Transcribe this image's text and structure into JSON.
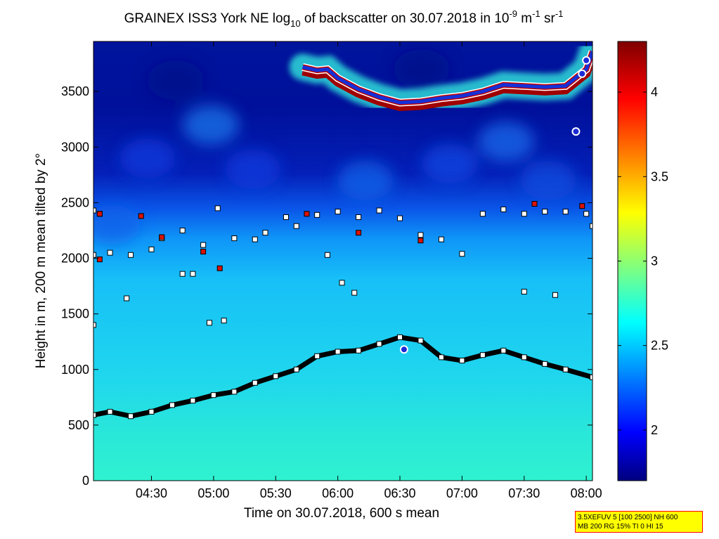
{
  "chart_data": {
    "type": "heatmap",
    "title_parts": {
      "prefix": "GRAINEX ISS3 York NE log",
      "log_subscript": "10",
      "middle": " of backscatter on 30.07.2018 in 10",
      "exp1": "-9",
      "unit_m": " m",
      "exp2": "-1",
      "unit_sr": " sr",
      "exp3": "-1"
    },
    "xlabel": "Time on 30.07.2018, 600 s mean",
    "ylabel": "Height in m, 200 m mean tilted by 2°",
    "xlim": [
      "04:02",
      "08:03"
    ],
    "ylim": [
      0,
      3950
    ],
    "x_ticks": [
      "04:30",
      "05:00",
      "05:30",
      "06:00",
      "06:30",
      "07:00",
      "07:30",
      "08:00"
    ],
    "y_ticks": [
      "0",
      "500",
      "1000",
      "1500",
      "2000",
      "2500",
      "3000",
      "3500"
    ],
    "colorbar": {
      "range": [
        1.7,
        4.3
      ],
      "ticks": [
        "2",
        "2.5",
        "3",
        "3.5",
        "4"
      ],
      "colormap": "jet"
    },
    "background_field": {
      "description": "log10 backscatter: ~2.7 near surface, ~2.55 in mixed layer up to ~2000 m, ~2.2 between 2000-2500 m, ~1.8-2.1 aloft, cloud layer ~4.3 near 3400-3700 m after 05:45"
    },
    "series": [
      {
        "marker": "black-square",
        "points": [
          [
            "04:02",
            590
          ],
          [
            "04:10",
            620
          ],
          [
            "04:20",
            580
          ],
          [
            "04:30",
            620
          ],
          [
            "04:40",
            680
          ],
          [
            "04:50",
            720
          ],
          [
            "05:00",
            770
          ],
          [
            "05:10",
            800
          ],
          [
            "05:20",
            880
          ],
          [
            "05:30",
            940
          ],
          [
            "05:40",
            1000
          ],
          [
            "05:50",
            1120
          ],
          [
            "06:00",
            1160
          ],
          [
            "06:10",
            1170
          ],
          [
            "06:20",
            1230
          ],
          [
            "06:30",
            1290
          ],
          [
            "06:40",
            1260
          ],
          [
            "06:50",
            1110
          ],
          [
            "07:00",
            1080
          ],
          [
            "07:10",
            1130
          ],
          [
            "07:20",
            1170
          ],
          [
            "07:30",
            1110
          ],
          [
            "07:40",
            1050
          ],
          [
            "07:50",
            1000
          ],
          [
            "08:03",
            930
          ]
        ]
      },
      {
        "marker": "cloud-layer",
        "points": [
          [
            "05:43",
            3720
          ],
          [
            "05:50",
            3690
          ],
          [
            "05:55",
            3700
          ],
          [
            "06:00",
            3620
          ],
          [
            "06:10",
            3520
          ],
          [
            "06:20",
            3450
          ],
          [
            "06:30",
            3400
          ],
          [
            "06:40",
            3410
          ],
          [
            "06:50",
            3440
          ],
          [
            "07:00",
            3460
          ],
          [
            "07:10",
            3500
          ],
          [
            "07:20",
            3560
          ],
          [
            "07:30",
            3550
          ],
          [
            "07:40",
            3540
          ],
          [
            "07:50",
            3550
          ],
          [
            "08:00",
            3700
          ],
          [
            "08:03",
            3860
          ]
        ]
      },
      {
        "marker": "white-square",
        "points": [
          [
            "04:02",
            2430
          ],
          [
            "04:05",
            2400
          ],
          [
            "04:02",
            2030
          ],
          [
            "04:10",
            2050
          ],
          [
            "04:20",
            2030
          ],
          [
            "04:30",
            2080
          ],
          [
            "04:35",
            2180
          ],
          [
            "04:45",
            2250
          ],
          [
            "04:55",
            2120
          ],
          [
            "05:02",
            2450
          ],
          [
            "05:10",
            2180
          ],
          [
            "05:20",
            2170
          ],
          [
            "05:25",
            2230
          ],
          [
            "05:35",
            2370
          ],
          [
            "05:40",
            2290
          ],
          [
            "05:50",
            2390
          ],
          [
            "05:55",
            2030
          ],
          [
            "06:00",
            2420
          ],
          [
            "06:10",
            2370
          ],
          [
            "06:20",
            2430
          ],
          [
            "06:30",
            2360
          ],
          [
            "06:40",
            2210
          ],
          [
            "06:50",
            2170
          ],
          [
            "07:00",
            2040
          ],
          [
            "07:10",
            2400
          ],
          [
            "07:20",
            2440
          ],
          [
            "07:30",
            2400
          ],
          [
            "07:40",
            2420
          ],
          [
            "07:50",
            2420
          ],
          [
            "08:00",
            2400
          ],
          [
            "08:03",
            2290
          ],
          [
            "04:18",
            1640
          ],
          [
            "04:45",
            1860
          ],
          [
            "04:50",
            1860
          ],
          [
            "04:58",
            1420
          ],
          [
            "05:05",
            1440
          ],
          [
            "06:02",
            1780
          ],
          [
            "06:08",
            1690
          ],
          [
            "07:30",
            1700
          ],
          [
            "07:45",
            1670
          ],
          [
            "04:02",
            1400
          ]
        ]
      },
      {
        "marker": "red-square",
        "points": [
          [
            "04:05",
            2400
          ],
          [
            "04:05",
            1990
          ],
          [
            "04:25",
            2380
          ],
          [
            "04:35",
            2190
          ],
          [
            "04:55",
            2060
          ],
          [
            "05:03",
            1910
          ],
          [
            "05:45",
            2400
          ],
          [
            "06:10",
            2230
          ],
          [
            "06:40",
            2160
          ],
          [
            "07:35",
            2490
          ],
          [
            "07:58",
            2470
          ]
        ]
      },
      {
        "marker": "blue-circle",
        "points": [
          [
            "06:32",
            1180
          ],
          [
            "07:55",
            3140
          ],
          [
            "07:58",
            3660
          ],
          [
            "08:00",
            3780
          ]
        ]
      }
    ]
  },
  "info_box": {
    "line1": "3.5XEFUV 5 [100 2500] NH 600",
    "line2": "MB 200 RG 15% TI 0 HI 15"
  }
}
